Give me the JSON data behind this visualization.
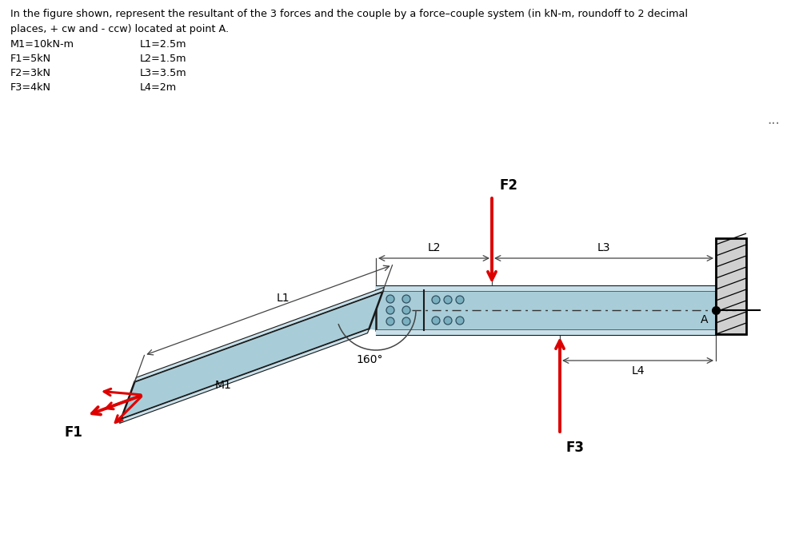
{
  "title_line1": "In the figure shown, represent the resultant of the 3 forces and the couple by a force–couple system (in kN-m, roundoff to 2 decimal",
  "title_line2": "places, + cw and - ccw) located at point A.",
  "params_left": [
    "M1=10kN-m",
    "F1=5kN",
    "F2=3kN",
    "F3=4kN"
  ],
  "params_right": [
    "L1=2.5m",
    "L2=1.5m",
    "L3=3.5m",
    "L4=2m"
  ],
  "beam_color": "#a8cdd8",
  "beam_edge_color": "#1a1a1a",
  "background": "#ffffff",
  "red": "#dd0000",
  "dim_color": "#444444",
  "ellipsis": "...",
  "angle_label": "160°",
  "labels": {
    "F1": "F1",
    "F2": "F2",
    "F3": "F3",
    "M1": "M1",
    "L1": "L1",
    "L2": "L2",
    "L3": "L3",
    "L4": "L4",
    "A": "A"
  }
}
